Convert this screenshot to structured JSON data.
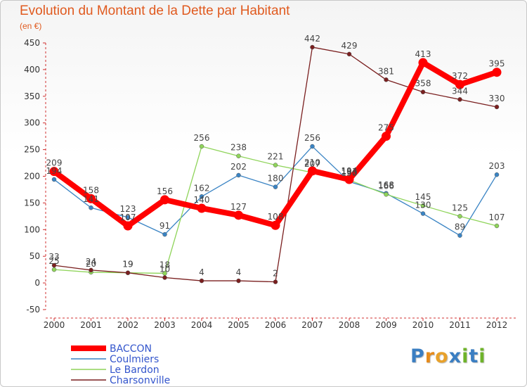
{
  "header": {
    "title": "Evolution du Montant de la Dette par Habitant",
    "unit": "(en €)"
  },
  "logo": {
    "text": "Proxiti",
    "letter_colors": [
      "#3a7ec2",
      "#e58b1c",
      "#e8a12a",
      "#3a7ec2",
      "#6eb32a",
      "#3a7ec2",
      "#6eb32a"
    ]
  },
  "chart_data": {
    "type": "line",
    "title": "Evolution du Montant de la Dette par Habitant",
    "ylabel": "(en €)",
    "x": [
      "2000",
      "2001",
      "2002",
      "2003",
      "2004",
      "2005",
      "2006",
      "2007",
      "2008",
      "2009",
      "2010",
      "2011",
      "2012"
    ],
    "ylim": [
      -50,
      450
    ],
    "yticks": [
      "-50",
      "0",
      "50",
      "100",
      "150",
      "200",
      "250",
      "300",
      "350",
      "400",
      "450"
    ],
    "grid": false,
    "legend_position": "bottom-left",
    "series": [
      {
        "name": "BACCON",
        "color": "#ff0000",
        "values": [
          209,
          158,
          107,
          156,
          140,
          127,
          108,
          210,
          194,
          275,
          413,
          372,
          395
        ],
        "labels": [
          "209",
          "158",
          "107",
          "156",
          "140",
          "127",
          "108",
          "210",
          "194",
          "275",
          "413",
          "372",
          "395"
        ]
      },
      {
        "name": "Coulmiers",
        "color": "#3a84c4",
        "values": [
          194,
          141,
          123,
          91,
          162,
          202,
          180,
          256,
          190,
          168,
          130,
          89,
          203
        ],
        "labels": [
          "194",
          "141",
          "123",
          "91",
          "162",
          "202",
          "180",
          "256",
          "190",
          "168",
          "130",
          "89",
          "203"
        ]
      },
      {
        "name": "Le Bardon",
        "color": "#8fd45a",
        "values": [
          25,
          20,
          19,
          18,
          256,
          238,
          221,
          207,
          193,
          166,
          145,
          125,
          107
        ],
        "labels": [
          "25",
          "20",
          "19",
          "18",
          "256",
          "238",
          "221",
          "207",
          "193",
          "166",
          "145",
          "125",
          "107"
        ]
      },
      {
        "name": "Charsonville",
        "color": "#7a1f1f",
        "values": [
          33,
          24,
          19,
          10,
          4,
          4,
          2,
          442,
          429,
          381,
          358,
          344,
          330
        ],
        "labels": [
          "33",
          "24",
          "19",
          "10",
          "4",
          "4",
          "2",
          "442",
          "429",
          "381",
          "358",
          "344",
          "330"
        ]
      }
    ]
  }
}
